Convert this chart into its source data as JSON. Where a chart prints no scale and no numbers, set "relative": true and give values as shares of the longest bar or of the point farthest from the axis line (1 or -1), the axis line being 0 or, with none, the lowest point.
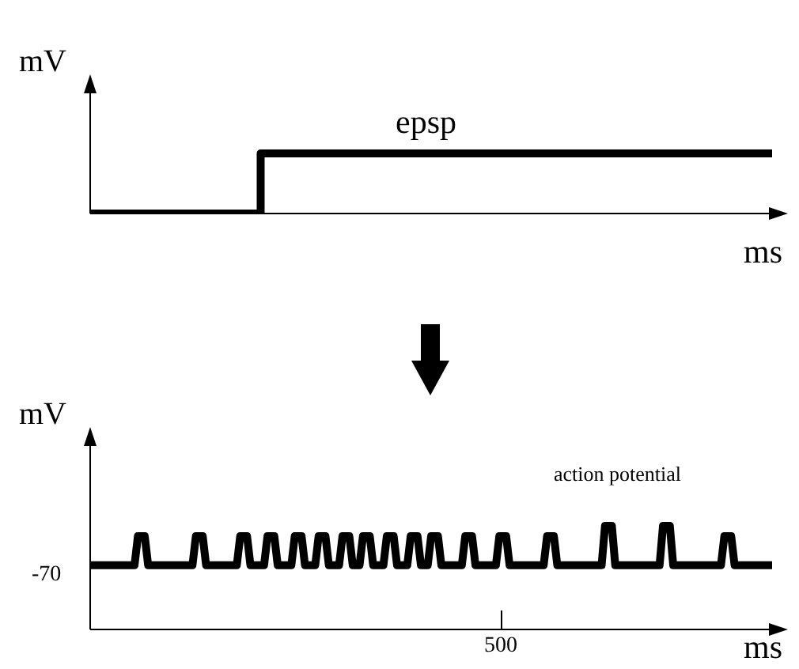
{
  "chart_data": [
    {
      "type": "step",
      "relative": true,
      "ylabel": "mV",
      "xlabel": "ms",
      "annotations": [
        "epsp"
      ],
      "categories": [
        null,
        null,
        null,
        null,
        null
      ],
      "series": [
        {
          "color": "#000000",
          "values": [
            0,
            1,
            1,
            1,
            1
          ]
        }
      ]
    },
    {
      "type": "line",
      "relative": true,
      "ylabel": "mV",
      "xlabel": "ms",
      "annotations": [
        "action potential",
        "500",
        "-70"
      ],
      "categories": [
        null,
        null,
        null,
        null,
        null,
        null,
        null,
        null,
        null,
        null,
        null,
        null,
        null,
        null,
        null,
        null,
        null,
        null,
        null,
        null,
        null,
        null,
        null,
        null,
        null,
        null,
        null,
        null,
        null,
        null,
        null,
        null,
        null,
        null,
        null,
        null,
        null,
        null,
        null,
        null,
        null,
        null,
        null,
        null,
        null,
        null,
        null,
        null,
        null,
        null,
        null,
        null,
        null,
        null,
        null,
        null,
        null,
        null,
        null,
        null,
        null,
        null,
        null,
        null,
        null,
        null,
        null,
        null,
        null,
        null,
        null,
        null,
        null,
        null,
        null,
        null,
        null,
        null,
        null,
        null,
        null,
        null,
        null,
        null,
        null,
        null,
        null,
        null,
        null,
        null,
        null,
        null,
        null,
        null,
        null,
        null,
        null,
        null,
        null,
        null,
        null,
        null,
        null,
        null,
        null,
        null,
        null,
        null,
        null,
        null,
        null,
        null,
        null,
        null,
        null,
        null,
        null,
        null,
        null,
        null,
        null,
        null,
        null,
        null,
        null,
        null,
        null,
        null,
        null,
        null,
        null,
        null,
        null,
        null,
        null,
        null,
        null,
        null,
        null,
        null,
        null,
        null,
        null,
        null,
        null,
        null,
        null,
        null,
        null,
        null,
        null,
        null,
        null,
        null,
        null,
        null,
        null,
        null,
        null,
        null,
        null,
        null,
        null,
        null,
        null,
        null,
        null,
        null,
        null,
        null,
        null,
        null,
        null,
        null,
        null,
        null,
        null,
        null,
        null,
        null,
        null,
        null,
        null,
        null,
        null,
        null,
        null,
        null,
        null,
        null,
        null,
        null,
        null,
        null,
        null,
        null,
        null,
        null,
        null,
        null,
        null
      ],
      "series": [
        {
          "color": "#000000",
          "values": [
            0.62,
            0.62,
            0.62,
            0.62,
            0.62,
            0.62,
            0.62,
            0.62,
            0.62,
            0.62,
            0.62,
            0.62,
            0.62,
            0.62,
            0.9,
            0.9,
            0.9,
            0.62,
            0.62,
            0.62,
            0.62,
            0.62,
            0.62,
            0.62,
            0.62,
            0.62,
            0.62,
            0.62,
            0.62,
            0.62,
            0.62,
            0.9,
            0.9,
            0.9,
            0.62,
            0.62,
            0.62,
            0.62,
            0.62,
            0.62,
            0.62,
            0.62,
            0.62,
            0.62,
            0.9,
            0.9,
            0.9,
            0.62,
            0.62,
            0.62,
            0.62,
            0.62,
            0.9,
            0.9,
            0.9,
            0.62,
            0.62,
            0.62,
            0.62,
            0.62,
            0.9,
            0.9,
            0.9,
            0.62,
            0.62,
            0.62,
            0.62,
            0.9,
            0.9,
            0.9,
            0.62,
            0.62,
            0.62,
            0.62,
            0.9,
            0.9,
            0.9,
            0.62,
            0.62,
            0.62,
            0.9,
            0.9,
            0.9,
            0.62,
            0.62,
            0.62,
            0.62,
            0.9,
            0.9,
            0.9,
            0.62,
            0.62,
            0.62,
            0.62,
            0.9,
            0.9,
            0.9,
            0.62,
            0.62,
            0.62,
            0.9,
            0.9,
            0.9,
            0.62,
            0.62,
            0.62,
            0.62,
            0.62,
            0.62,
            0.62,
            0.9,
            0.9,
            0.9,
            0.62,
            0.62,
            0.62,
            0.62,
            0.62,
            0.62,
            0.62,
            0.9,
            0.9,
            0.9,
            0.62,
            0.62,
            0.62,
            0.62,
            0.62,
            0.62,
            0.62,
            0.62,
            0.62,
            0.62,
            0.62,
            0.9,
            0.9,
            0.9,
            0.62,
            0.62,
            0.62,
            0.62,
            0.62,
            0.62,
            0.62,
            0.62,
            0.62,
            0.62,
            0.62,
            0.62,
            0.62,
            0.62,
            1,
            1,
            1,
            0.62,
            0.62,
            0.62,
            0.62,
            0.62,
            0.62,
            0.62,
            0.62,
            0.62,
            0.62,
            0.62,
            0.62,
            0.62,
            0.62,
            1,
            1,
            1,
            0.62,
            0.62,
            0.62,
            0.62,
            0.62,
            0.62,
            0.62,
            0.62,
            0.62,
            0.62,
            0.62,
            0.62,
            0.62,
            0.62,
            0.62,
            0.9,
            0.9,
            0.9,
            0.62,
            0.62,
            0.62,
            0.62,
            0.62,
            0.62,
            0.62,
            0.62,
            0.62,
            0.62,
            0.62,
            0.62
          ]
        }
      ]
    }
  ]
}
